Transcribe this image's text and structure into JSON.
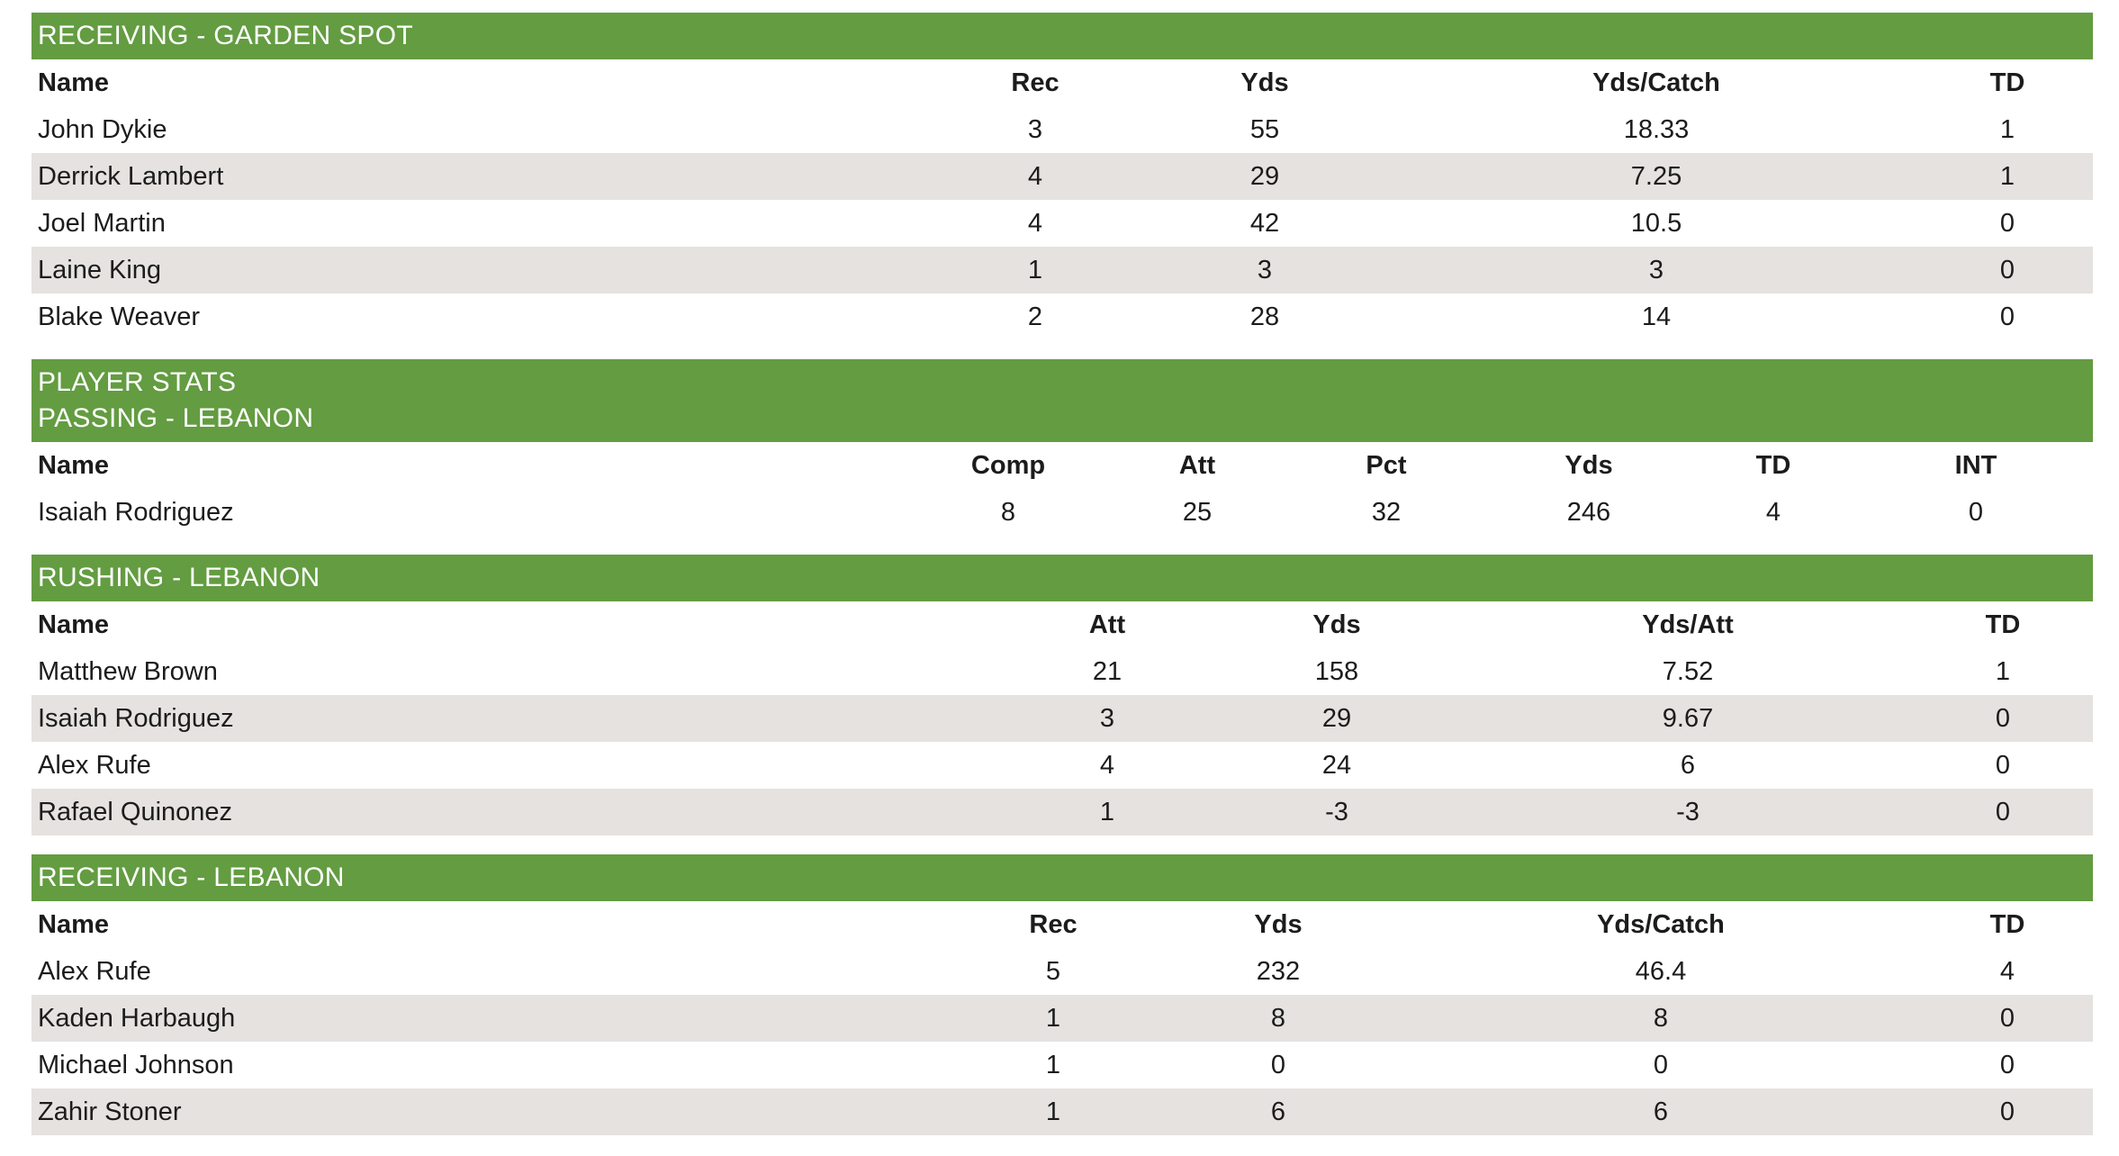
{
  "sections": {
    "rec_gs": {
      "header_lines": [
        "RECEIVING - GARDEN SPOT"
      ],
      "columns": [
        "Name",
        "Rec",
        "Yds",
        "Yds/Catch",
        "TD"
      ],
      "rows": [
        [
          "John Dykie",
          "3",
          "55",
          "18.33",
          "1"
        ],
        [
          "Derrick Lambert",
          "4",
          "29",
          "7.25",
          "1"
        ],
        [
          "Joel Martin",
          "4",
          "42",
          "10.5",
          "0"
        ],
        [
          "Laine King",
          "1",
          "3",
          "3",
          "0"
        ],
        [
          "Blake Weaver",
          "2",
          "28",
          "14",
          "0"
        ]
      ]
    },
    "pass_leb": {
      "header_lines": [
        "PLAYER STATS",
        "PASSING - LEBANON"
      ],
      "columns": [
        "Name",
        "Comp",
        "Att",
        "Pct",
        "Yds",
        "TD",
        "INT"
      ],
      "rows": [
        [
          "Isaiah Rodriguez",
          "8",
          "25",
          "32",
          "246",
          "4",
          "0"
        ]
      ]
    },
    "rush_leb": {
      "header_lines": [
        "RUSHING - LEBANON"
      ],
      "columns": [
        "Name",
        "Att",
        "Yds",
        "Yds/Att",
        "TD"
      ],
      "rows": [
        [
          "Matthew Brown",
          "21",
          "158",
          "7.52",
          "1"
        ],
        [
          "Isaiah Rodriguez",
          "3",
          "29",
          "9.67",
          "0"
        ],
        [
          "Alex Rufe",
          "4",
          "24",
          "6",
          "0"
        ],
        [
          "Rafael Quinonez",
          "1",
          "-3",
          "-3",
          "0"
        ]
      ]
    },
    "rec_leb": {
      "header_lines": [
        "RECEIVING - LEBANON"
      ],
      "columns": [
        "Name",
        "Rec",
        "Yds",
        "Yds/Catch",
        "TD"
      ],
      "rows": [
        [
          "Alex Rufe",
          "5",
          "232",
          "46.4",
          "4"
        ],
        [
          "Kaden Harbaugh",
          "1",
          "8",
          "8",
          "0"
        ],
        [
          "Michael Johnson",
          "1",
          "0",
          "0",
          "0"
        ],
        [
          "Zahir Stoner",
          "1",
          "6",
          "6",
          "0"
        ]
      ]
    }
  },
  "colors": {
    "header_green": "#639c41",
    "alt_row": "#e5e2df"
  }
}
